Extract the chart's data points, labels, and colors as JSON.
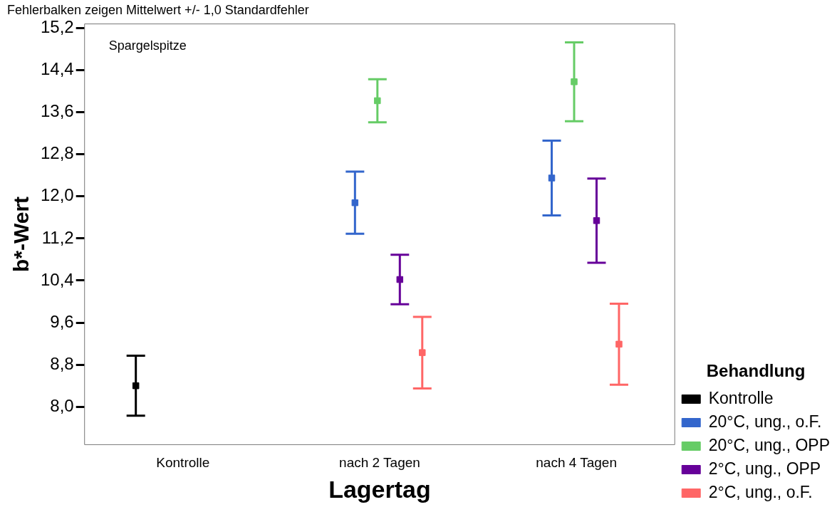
{
  "chart_data": {
    "type": "scatter",
    "title": "Fehlerbalken zeigen Mittelwert +/- 1,0 Standardfehler",
    "xlabel": "Lagertag",
    "ylabel": "b*-Wert",
    "legend_title": "Behandlung",
    "annotations": [
      "Spargelspitze"
    ],
    "categories": [
      "Kontrolle",
      "nach 2 Tagen",
      "nach 4 Tagen"
    ],
    "series": [
      {
        "name": "Kontrolle",
        "color": "#000000",
        "values": [
          8.4,
          null,
          null
        ],
        "errors": [
          0.57,
          null,
          null
        ]
      },
      {
        "name": "20°C, ung., o.F.",
        "color": "#3366cc",
        "values": [
          null,
          11.88,
          12.35
        ],
        "errors": [
          null,
          0.59,
          0.71
        ]
      },
      {
        "name": "20°C, ung., OPP",
        "color": "#66cc66",
        "values": [
          null,
          13.82,
          14.18
        ],
        "errors": [
          null,
          0.41,
          0.75
        ]
      },
      {
        "name": "2°C, ung., OPP",
        "color": "#660099",
        "values": [
          null,
          10.42,
          11.54
        ],
        "errors": [
          null,
          0.47,
          0.8
        ]
      },
      {
        "name": "2°C, ung., o.F.",
        "color": "#ff6666",
        "values": [
          null,
          9.03,
          9.19
        ],
        "errors": [
          null,
          0.68,
          0.77
        ]
      }
    ],
    "ylim": [
      7.28,
      15.28
    ],
    "yticks": [
      {
        "value": 8,
        "label": "8,0"
      },
      {
        "value": 8.8,
        "label": "8,8"
      },
      {
        "value": 9.6,
        "label": "9,6"
      },
      {
        "value": 10.4,
        "label": "10,4"
      },
      {
        "value": 11.2,
        "label": "11,2"
      },
      {
        "value": 12,
        "label": "12,0"
      },
      {
        "value": 12.8,
        "label": "12,8"
      },
      {
        "value": 13.6,
        "label": "13,6"
      },
      {
        "value": 14.4,
        "label": "14,4"
      },
      {
        "value": 15.2,
        "label": "15,2"
      }
    ],
    "grid": false,
    "legend": "right",
    "marker": "square"
  }
}
